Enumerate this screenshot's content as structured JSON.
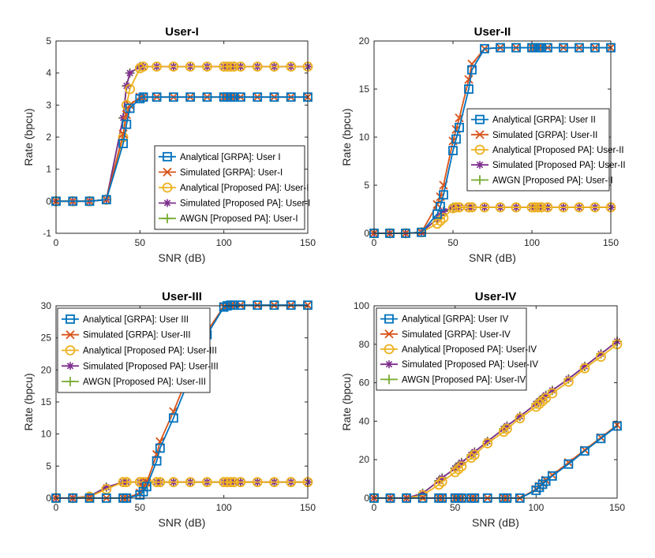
{
  "figure": {
    "marker_colors": {
      "analytical_grpa": "#0072BD",
      "simulated_grpa": "#D95319",
      "analytical_proposed": "#EDB120",
      "simulated_proposed": "#7E2F8E",
      "awgn_proposed": "#77AC30"
    }
  },
  "chart_data": [
    {
      "type": "line",
      "title": "User-I",
      "xlabel": "SNR (dB)",
      "ylabel": "Rate (bpcu)",
      "xlim": [
        0,
        150
      ],
      "ylim": [
        -1,
        5
      ],
      "xticks": [
        0,
        50,
        100,
        150
      ],
      "yticks": [
        -1,
        0,
        1,
        2,
        3,
        4,
        5
      ],
      "legend_position": "bottom-right",
      "x": [
        0,
        10,
        20,
        30,
        40,
        42,
        44,
        50,
        52,
        60,
        70,
        80,
        90,
        100,
        102,
        104,
        106,
        110,
        120,
        130,
        140,
        150
      ],
      "series": [
        {
          "name": "Analytical [GRPA]: User I",
          "style": "analytical_grpa",
          "values": [
            0,
            0,
            0,
            0.05,
            1.8,
            2.4,
            2.9,
            3.2,
            3.25,
            3.25,
            3.25,
            3.25,
            3.25,
            3.25,
            3.25,
            3.25,
            3.25,
            3.25,
            3.25,
            3.25,
            3.25,
            3.25
          ]
        },
        {
          "name": "Simulated [GRPA]: User-I",
          "style": "simulated_grpa",
          "values": [
            0,
            0,
            0,
            0.05,
            2.1,
            2.7,
            3.0,
            3.25,
            3.25,
            3.25,
            3.25,
            3.25,
            3.25,
            3.25,
            3.25,
            3.25,
            3.25,
            3.25,
            3.25,
            3.25,
            3.25,
            3.25
          ]
        },
        {
          "name": "Analytical [Proposed PA]: User-I",
          "style": "analytical_proposed",
          "values": [
            0,
            0,
            0,
            0.05,
            2.0,
            3.0,
            3.5,
            4.15,
            4.2,
            4.2,
            4.2,
            4.2,
            4.2,
            4.2,
            4.2,
            4.2,
            4.2,
            4.2,
            4.2,
            4.2,
            4.2,
            4.2
          ]
        },
        {
          "name": "Simulated [Proposed PA]: User-I",
          "style": "simulated_proposed",
          "values": [
            0,
            0,
            0,
            0.05,
            2.6,
            3.6,
            4.0,
            4.2,
            4.2,
            4.2,
            4.2,
            4.2,
            4.2,
            4.2,
            4.2,
            4.2,
            4.2,
            4.2,
            4.2,
            4.2,
            4.2,
            4.2
          ]
        },
        {
          "name": "AWGN [Proposed PA]: User-I",
          "style": "awgn_proposed",
          "values": [
            0,
            0,
            0,
            0.05,
            2.6,
            3.6,
            4.0,
            4.2,
            4.2,
            4.2,
            4.2,
            4.2,
            4.2,
            4.2,
            4.2,
            4.2,
            4.2,
            4.2,
            4.2,
            4.2,
            4.2,
            4.2
          ]
        }
      ]
    },
    {
      "type": "line",
      "title": "User-II",
      "xlabel": "SNR (dB)",
      "ylabel": "Rate (bpcu)",
      "xlim": [
        0,
        150
      ],
      "ylim": [
        0,
        20
      ],
      "xticks": [
        0,
        50,
        100,
        150
      ],
      "yticks": [
        0,
        5,
        10,
        15,
        20
      ],
      "legend_position": "center-right",
      "x": [
        0,
        10,
        20,
        30,
        40,
        42,
        44,
        50,
        52,
        54,
        60,
        62,
        70,
        80,
        90,
        100,
        102,
        104,
        106,
        110,
        120,
        130,
        140,
        150
      ],
      "series": [
        {
          "name": "Analytical [GRPA]: User II",
          "style": "analytical_grpa",
          "values": [
            0,
            0,
            0,
            0.1,
            2.0,
            2.8,
            4.0,
            8.6,
            9.8,
            11.0,
            15.0,
            17.0,
            19.2,
            19.3,
            19.3,
            19.3,
            19.3,
            19.3,
            19.3,
            19.3,
            19.3,
            19.3,
            19.3,
            19.3
          ]
        },
        {
          "name": "Simulated [GRPA]: User-II",
          "style": "simulated_grpa",
          "values": [
            0,
            0,
            0,
            0.1,
            3.0,
            3.8,
            5.0,
            9.6,
            10.8,
            12.0,
            16.0,
            17.6,
            19.2,
            19.3,
            19.3,
            19.3,
            19.3,
            19.3,
            19.3,
            19.3,
            19.3,
            19.3,
            19.3,
            19.3
          ]
        },
        {
          "name": "Analytical [Proposed PA]: User-II",
          "style": "analytical_proposed",
          "values": [
            0,
            0,
            0,
            0.1,
            1.0,
            1.3,
            1.6,
            2.6,
            2.7,
            2.7,
            2.7,
            2.7,
            2.7,
            2.7,
            2.7,
            2.7,
            2.7,
            2.7,
            2.7,
            2.7,
            2.7,
            2.7,
            2.7,
            2.7
          ]
        },
        {
          "name": "Simulated [Proposed PA]: User-II",
          "style": "simulated_proposed",
          "values": [
            0,
            0,
            0,
            0.1,
            1.5,
            1.9,
            2.3,
            2.7,
            2.7,
            2.7,
            2.7,
            2.7,
            2.7,
            2.7,
            2.7,
            2.7,
            2.7,
            2.7,
            2.7,
            2.7,
            2.7,
            2.7,
            2.7,
            2.7
          ]
        },
        {
          "name": "AWGN [Proposed PA]: User-II",
          "style": "awgn_proposed",
          "values": [
            0,
            0,
            0,
            0.1,
            1.5,
            1.9,
            2.3,
            2.7,
            2.7,
            2.7,
            2.7,
            2.7,
            2.7,
            2.7,
            2.7,
            2.7,
            2.7,
            2.7,
            2.7,
            2.7,
            2.7,
            2.7,
            2.7,
            2.7
          ]
        }
      ]
    },
    {
      "type": "line",
      "title": "User-III",
      "xlabel": "SNR (dB)",
      "ylabel": "Rate (bpcu)",
      "xlim": [
        0,
        150
      ],
      "ylim": [
        0,
        30
      ],
      "xticks": [
        0,
        50,
        100,
        150
      ],
      "yticks": [
        0,
        5,
        10,
        15,
        20,
        25,
        30
      ],
      "legend_position": "top-left",
      "x": [
        0,
        10,
        20,
        30,
        40,
        42,
        50,
        52,
        54,
        60,
        62,
        70,
        80,
        90,
        100,
        102,
        104,
        106,
        110,
        120,
        130,
        140,
        150
      ],
      "series": [
        {
          "name": "Analytical [GRPA]: User III",
          "style": "analytical_grpa",
          "values": [
            0,
            0,
            0,
            0,
            0,
            0,
            0.5,
            1.0,
            1.8,
            5.8,
            7.8,
            12.5,
            19.0,
            25.5,
            29.8,
            30.0,
            30.1,
            30.1,
            30.1,
            30.1,
            30.1,
            30.1,
            30.1
          ]
        },
        {
          "name": "Simulated [GRPA]: User-III",
          "style": "simulated_grpa",
          "values": [
            0,
            0,
            0,
            0,
            0,
            0,
            0.8,
            1.6,
            2.4,
            6.8,
            8.8,
            13.5,
            20.0,
            26.0,
            29.9,
            30.0,
            30.1,
            30.1,
            30.1,
            30.1,
            30.1,
            30.1,
            30.1
          ]
        },
        {
          "name": "Analytical [Proposed PA]: User-III",
          "style": "analytical_proposed",
          "values": [
            0,
            0,
            0.2,
            1.4,
            2.5,
            2.5,
            2.5,
            2.5,
            2.5,
            2.5,
            2.5,
            2.5,
            2.5,
            2.5,
            2.5,
            2.5,
            2.5,
            2.5,
            2.5,
            2.5,
            2.5,
            2.5,
            2.5
          ]
        },
        {
          "name": "Simulated [Proposed PA]: User-III",
          "style": "simulated_proposed",
          "values": [
            0,
            0,
            0.3,
            1.7,
            2.5,
            2.5,
            2.5,
            2.5,
            2.5,
            2.5,
            2.5,
            2.5,
            2.5,
            2.5,
            2.5,
            2.5,
            2.5,
            2.5,
            2.5,
            2.5,
            2.5,
            2.5,
            2.5
          ]
        },
        {
          "name": "AWGN [Proposed PA]: User-III",
          "style": "awgn_proposed",
          "values": [
            0,
            0,
            0.3,
            1.7,
            2.5,
            2.5,
            2.5,
            2.5,
            2.5,
            2.5,
            2.5,
            2.5,
            2.5,
            2.5,
            2.5,
            2.5,
            2.5,
            2.5,
            2.5,
            2.5,
            2.5,
            2.5,
            2.5
          ]
        }
      ]
    },
    {
      "type": "line",
      "title": "User-IV",
      "xlabel": "SNR (dB)",
      "ylabel": "Rate (bpcu)",
      "xlim": [
        0,
        150
      ],
      "ylim": [
        0,
        100
      ],
      "xticks": [
        0,
        50,
        100,
        150
      ],
      "yticks": [
        0,
        20,
        40,
        60,
        80,
        100
      ],
      "legend_position": "top-left",
      "x": [
        0,
        10,
        20,
        30,
        40,
        42,
        50,
        52,
        54,
        60,
        62,
        70,
        80,
        82,
        90,
        100,
        102,
        104,
        106,
        110,
        120,
        130,
        140,
        150
      ],
      "series": [
        {
          "name": "Analytical [GRPA]: User IV",
          "style": "analytical_grpa",
          "values": [
            0,
            0,
            0,
            0,
            0,
            0,
            0,
            0,
            0,
            0,
            0,
            0,
            0,
            0,
            0,
            4.0,
            5.6,
            7.2,
            8.8,
            11.5,
            17.7,
            24.5,
            31.0,
            37.5
          ]
        },
        {
          "name": "Simulated [GRPA]: User-IV",
          "style": "simulated_grpa",
          "values": [
            0,
            0,
            0,
            0,
            0,
            0,
            0,
            0,
            0,
            0,
            0,
            0,
            0,
            0,
            0,
            4.6,
            6.2,
            7.8,
            9.4,
            12.0,
            18.5,
            25.0,
            31.5,
            38.0
          ]
        },
        {
          "name": "Analytical [Proposed PA]: User-IV",
          "style": "analytical_proposed",
          "values": [
            0,
            0,
            0,
            1.5,
            7.0,
            8.5,
            13.5,
            15.0,
            16.5,
            21.0,
            22.5,
            28.5,
            34.5,
            36.0,
            41.5,
            47.5,
            49.0,
            50.5,
            52.0,
            54.5,
            60.5,
            67.5,
            73.5,
            80.0
          ]
        },
        {
          "name": "Simulated [Proposed PA]: User-IV",
          "style": "simulated_proposed",
          "values": [
            0,
            0,
            0,
            2.5,
            9.0,
            10.5,
            15.5,
            17.0,
            18.5,
            22.5,
            24.0,
            29.5,
            36.0,
            37.5,
            42.5,
            49.0,
            50.5,
            52.0,
            53.5,
            56.0,
            62.0,
            68.5,
            75.0,
            81.5
          ]
        },
        {
          "name": "AWGN [Proposed PA]: User-IV",
          "style": "awgn_proposed",
          "values": [
            0,
            0,
            0,
            2.5,
            9.0,
            10.5,
            15.5,
            17.0,
            18.5,
            22.5,
            24.0,
            29.5,
            36.0,
            37.5,
            42.5,
            49.0,
            50.5,
            52.0,
            53.5,
            56.0,
            62.0,
            68.5,
            75.0,
            81.5
          ]
        }
      ]
    }
  ]
}
